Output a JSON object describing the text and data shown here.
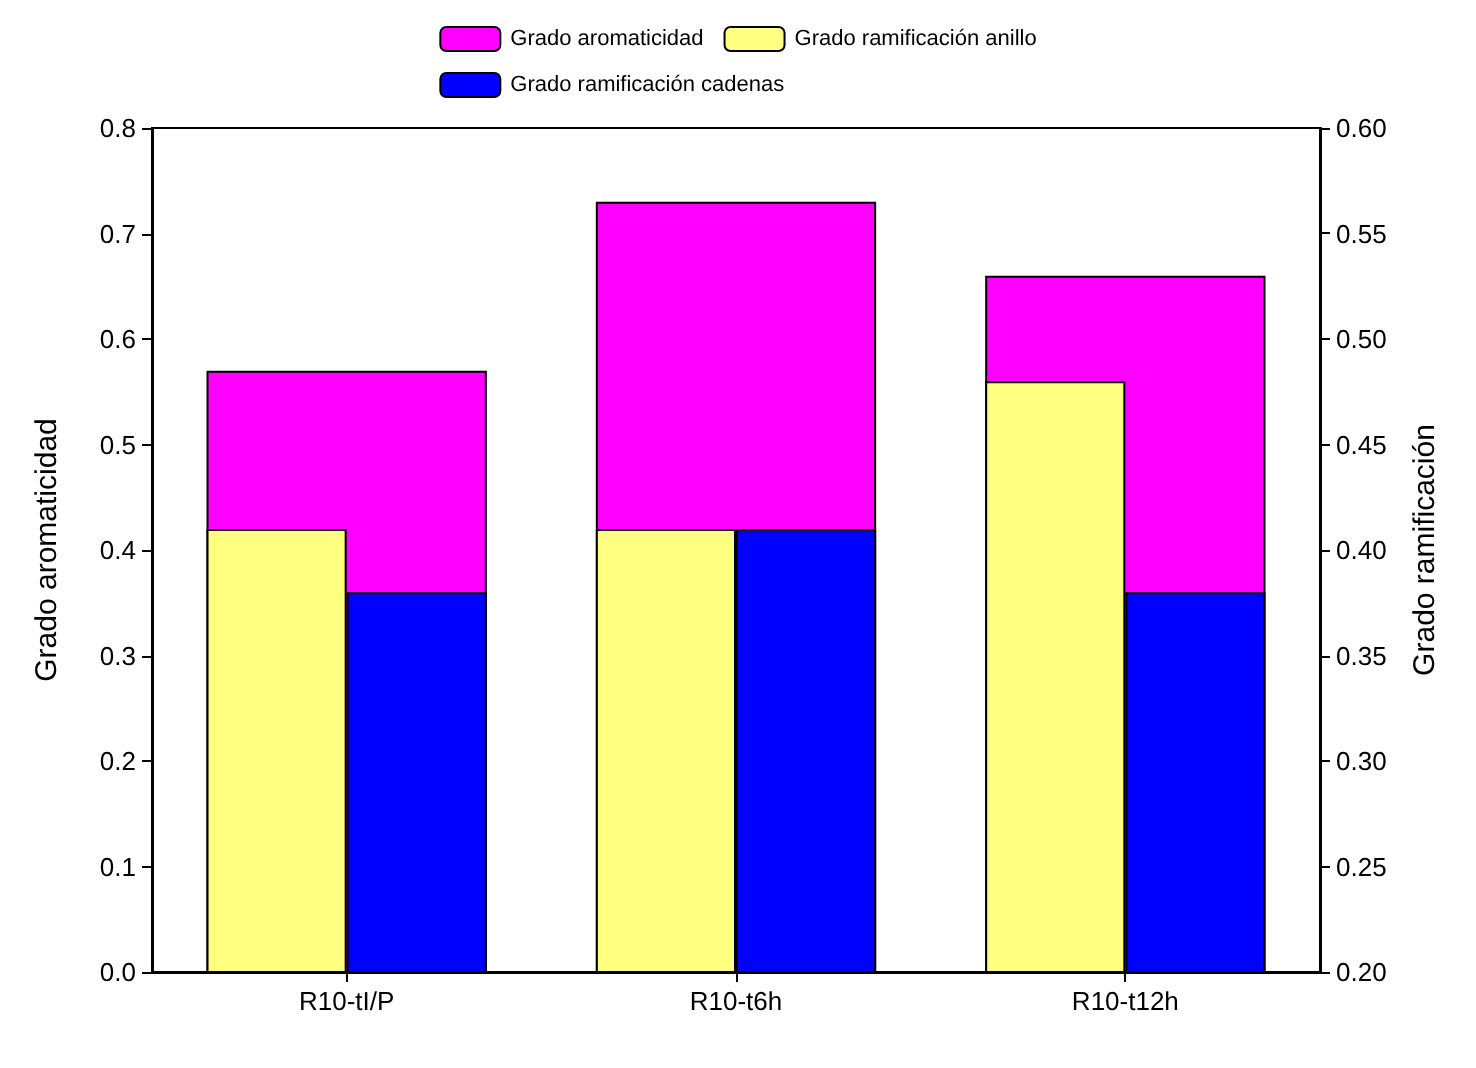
{
  "chart_data": {
    "type": "bar",
    "categories": [
      "R10-tI/P",
      "R10-t6h",
      "R10-t12h"
    ],
    "ylabel": "Grado aromaticidad",
    "y2label": "Grado ramificación",
    "series": [
      {
        "name": "Grado aromaticidad",
        "color": "#ff00ff",
        "values": [
          0.57,
          0.73,
          0.66
        ]
      },
      {
        "name": "Grado ramificación anillo",
        "color": "#ffff80",
        "axis": "y2",
        "values": [
          0.41,
          0.41,
          0.48
        ]
      },
      {
        "name": "Grado ramificación cadenas",
        "color": "#0000ff",
        "axis": "y2",
        "values": [
          0.38,
          0.41,
          0.38
        ]
      }
    ],
    "ylim": [
      0,
      0.8
    ],
    "yticks": [
      {
        "value": 0,
        "label": "0.0"
      },
      0.1,
      0.2,
      0.3,
      0.4,
      0.5,
      0.6,
      0.7,
      0.8
    ],
    "y2lim": [
      0.2,
      0.6
    ],
    "y2ticks": [
      {
        "value": 0.2,
        "label": "0.20"
      },
      0.25,
      {
        "value": 0.3,
        "label": "0.30"
      },
      0.35,
      {
        "value": 0.4,
        "label": "0.40"
      },
      0.45,
      {
        "value": 0.5,
        "label": "0.50"
      },
      0.55,
      {
        "value": 0.6,
        "label": "0.60"
      }
    ],
    "grid": false,
    "legend": "top"
  }
}
